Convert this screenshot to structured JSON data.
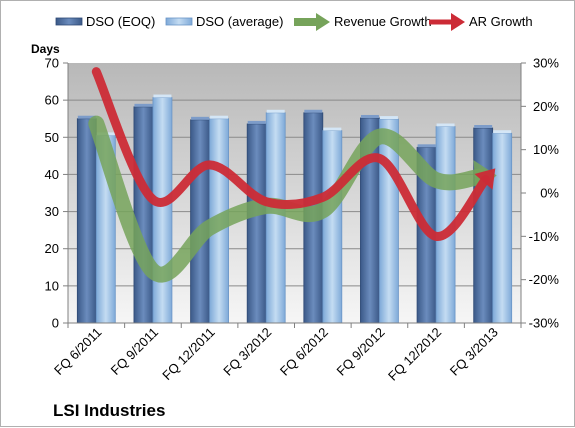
{
  "company": "LSI Industries",
  "chart_data": {
    "type": "bar",
    "categories": [
      "FQ 6/2011",
      "FQ 9/2011",
      "FQ 12/2011",
      "FQ 3/2012",
      "FQ 6/2012",
      "FQ 9/2012",
      "FQ 12/2012",
      "FQ 3/2013"
    ],
    "ylabel": "Days",
    "ylim": [
      0,
      70
    ],
    "yticks": [
      "0",
      "10",
      "20",
      "30",
      "40",
      "50",
      "60",
      "70"
    ],
    "y2lim": [
      -30,
      30
    ],
    "y2ticks": [
      "-30%",
      "-20%",
      "-10%",
      "0%",
      "10%",
      "20%",
      "30%"
    ],
    "grid": true,
    "legend_position": "top",
    "series": [
      {
        "name": "DSO (EOQ)",
        "kind": "bar",
        "axis": "left",
        "color": "#4f6fa0",
        "values": [
          55,
          58.2,
          54.7,
          53.6,
          56.6,
          55.2,
          47.3,
          52.5
        ]
      },
      {
        "name": "DSO (average)",
        "kind": "bar",
        "axis": "left",
        "color": "#9dc3e6",
        "values": [
          50.5,
          60.7,
          55,
          56.6,
          51.8,
          54.9,
          52.9,
          51.1
        ]
      },
      {
        "name": "Revenue Growth",
        "kind": "line",
        "axis": "right",
        "color": "#76a35a",
        "values": [
          16,
          -18,
          -8,
          -3,
          -4,
          13,
          3,
          4
        ]
      },
      {
        "name": "AR Growth",
        "kind": "line",
        "axis": "right",
        "color": "#cc2b36",
        "values": [
          28,
          -1.5,
          6.5,
          -2,
          -1,
          8,
          -10,
          5
        ]
      }
    ]
  }
}
